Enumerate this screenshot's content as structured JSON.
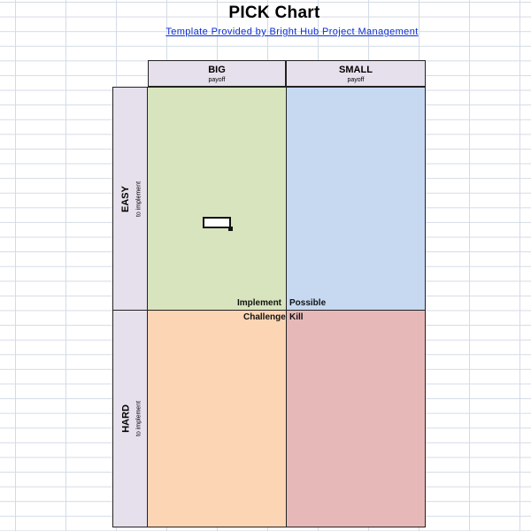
{
  "header": {
    "title": "PICK Chart",
    "subtitle": "Template Provided by Bright Hub Project Management"
  },
  "columns": [
    {
      "label": "BIG",
      "sub": "payoff"
    },
    {
      "label": "SMALL",
      "sub": "payoff"
    }
  ],
  "rows": [
    {
      "label": "EASY",
      "sub": "to implement"
    },
    {
      "label": "HARD",
      "sub": "to implement"
    }
  ],
  "quadrants": {
    "implement": {
      "label": "Implement",
      "color": "#d7e4bd"
    },
    "possible": {
      "label": "Possible",
      "color": "#c6d9f1"
    },
    "challenge": {
      "label": "Challenge",
      "color": "#fcd5b5"
    },
    "kill": {
      "label": "Kill",
      "color": "#e6b9b8"
    }
  },
  "header_color": "#e6e0ec"
}
